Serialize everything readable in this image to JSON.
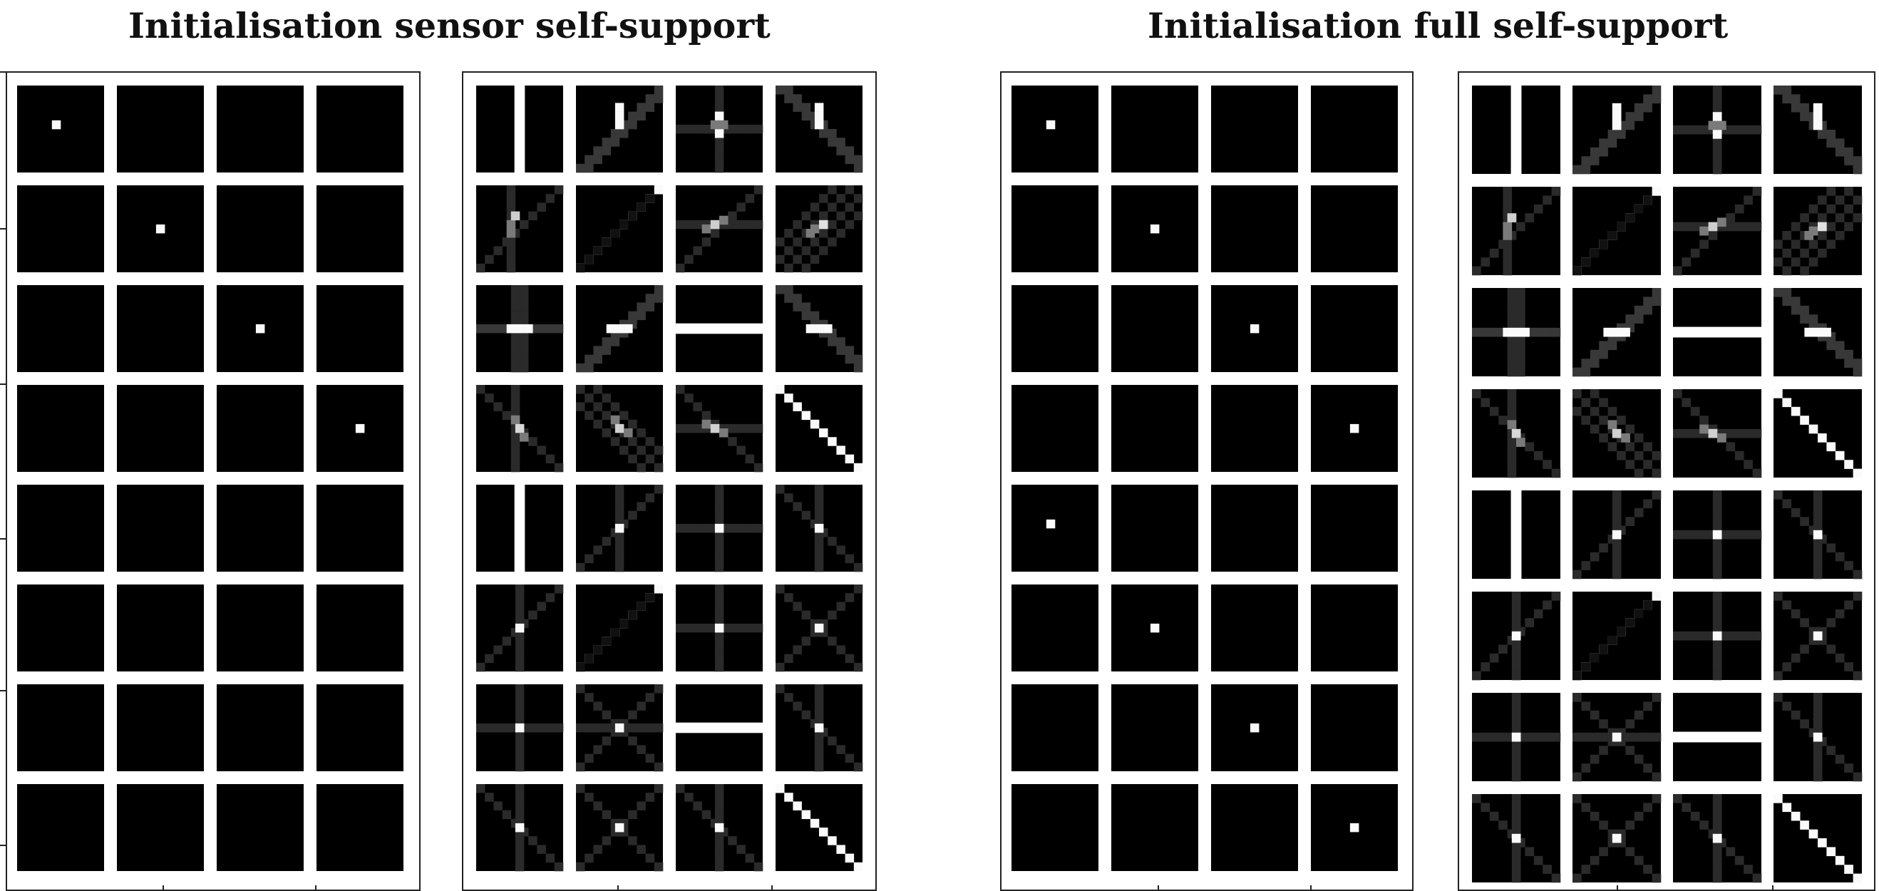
{
  "figure": {
    "titles": [
      "Initialisation sensor self-support",
      "Initialisation full self-support"
    ]
  },
  "colors": {
    "background": "#ffffff",
    "tile": "#000000",
    "frame": "#222222"
  },
  "groups": [
    {
      "name": "sensor-self-support",
      "sensor_grid": [
        [
          "dot-r4c4",
          "empty",
          "empty",
          "empty"
        ],
        [
          "empty",
          "dot-center",
          "empty",
          "empty"
        ],
        [
          "empty",
          "empty",
          "dot-center",
          "empty"
        ],
        [
          "empty",
          "empty",
          "empty",
          "dot-center"
        ],
        [
          "empty",
          "empty",
          "empty",
          "empty"
        ],
        [
          "empty",
          "empty",
          "empty",
          "empty"
        ],
        [
          "empty",
          "empty",
          "empty",
          "empty"
        ],
        [
          "empty",
          "empty",
          "empty",
          "empty"
        ]
      ],
      "kernel_grid": [
        [
          "split-vertical",
          "diag-plus-bright",
          "cross-bright-vertical",
          "antidiag-plus-bright"
        ],
        [
          "vertical-diag-blob",
          "diagonal-line",
          "horizontal-diag-blob",
          "checker-diag-blob"
        ],
        [
          "horizontal-blob",
          "diag-horizontal-bar",
          "split-horizontal",
          "antidiag-horizontal-bar"
        ],
        [
          "vertical-antidiag-blob",
          "checker-antidiag-blob",
          "horizontal-antidiag-blob",
          "antidiagonal-line"
        ],
        [
          "split-vertical",
          "diag-cross-dot",
          "cross-dot",
          "antidiag-cross-dot"
        ],
        [
          "diag-cross-dot",
          "diagonal-line",
          "cross-dot",
          "x-dot"
        ],
        [
          "cross-dot",
          "x-cross-dot",
          "split-horizontal",
          "antidiag-cross-dot"
        ],
        [
          "antidiag-cross-dot",
          "x-dot",
          "antidiag-cross-dot",
          "antidiagonal-line"
        ]
      ]
    },
    {
      "name": "full-self-support",
      "sensor_grid": [
        [
          "dot-r4c4",
          "empty",
          "empty",
          "empty"
        ],
        [
          "empty",
          "dot-center",
          "empty",
          "empty"
        ],
        [
          "empty",
          "empty",
          "dot-center",
          "empty"
        ],
        [
          "empty",
          "empty",
          "empty",
          "dot-center"
        ],
        [
          "dot-r4c4",
          "empty",
          "empty",
          "empty"
        ],
        [
          "empty",
          "dot-center",
          "empty",
          "empty"
        ],
        [
          "empty",
          "empty",
          "dot-center",
          "empty"
        ],
        [
          "empty",
          "empty",
          "empty",
          "dot-center"
        ]
      ],
      "kernel_grid": [
        [
          "split-vertical",
          "diag-plus-bright",
          "cross-bright-vertical",
          "antidiag-plus-bright"
        ],
        [
          "vertical-diag-blob",
          "diagonal-line",
          "horizontal-diag-blob",
          "checker-diag-blob"
        ],
        [
          "horizontal-blob",
          "diag-horizontal-bar",
          "split-horizontal",
          "antidiag-horizontal-bar"
        ],
        [
          "vertical-antidiag-blob",
          "checker-antidiag-blob",
          "horizontal-antidiag-blob",
          "antidiagonal-line"
        ],
        [
          "split-vertical",
          "diag-cross-dot",
          "cross-dot",
          "antidiag-cross-dot"
        ],
        [
          "diag-cross-dot",
          "diagonal-line",
          "cross-dot",
          "x-dot"
        ],
        [
          "cross-dot",
          "x-cross-dot",
          "split-horizontal",
          "antidiag-cross-dot"
        ],
        [
          "antidiag-cross-dot",
          "x-dot",
          "antidiag-cross-dot",
          "antidiagonal-line"
        ]
      ]
    }
  ]
}
